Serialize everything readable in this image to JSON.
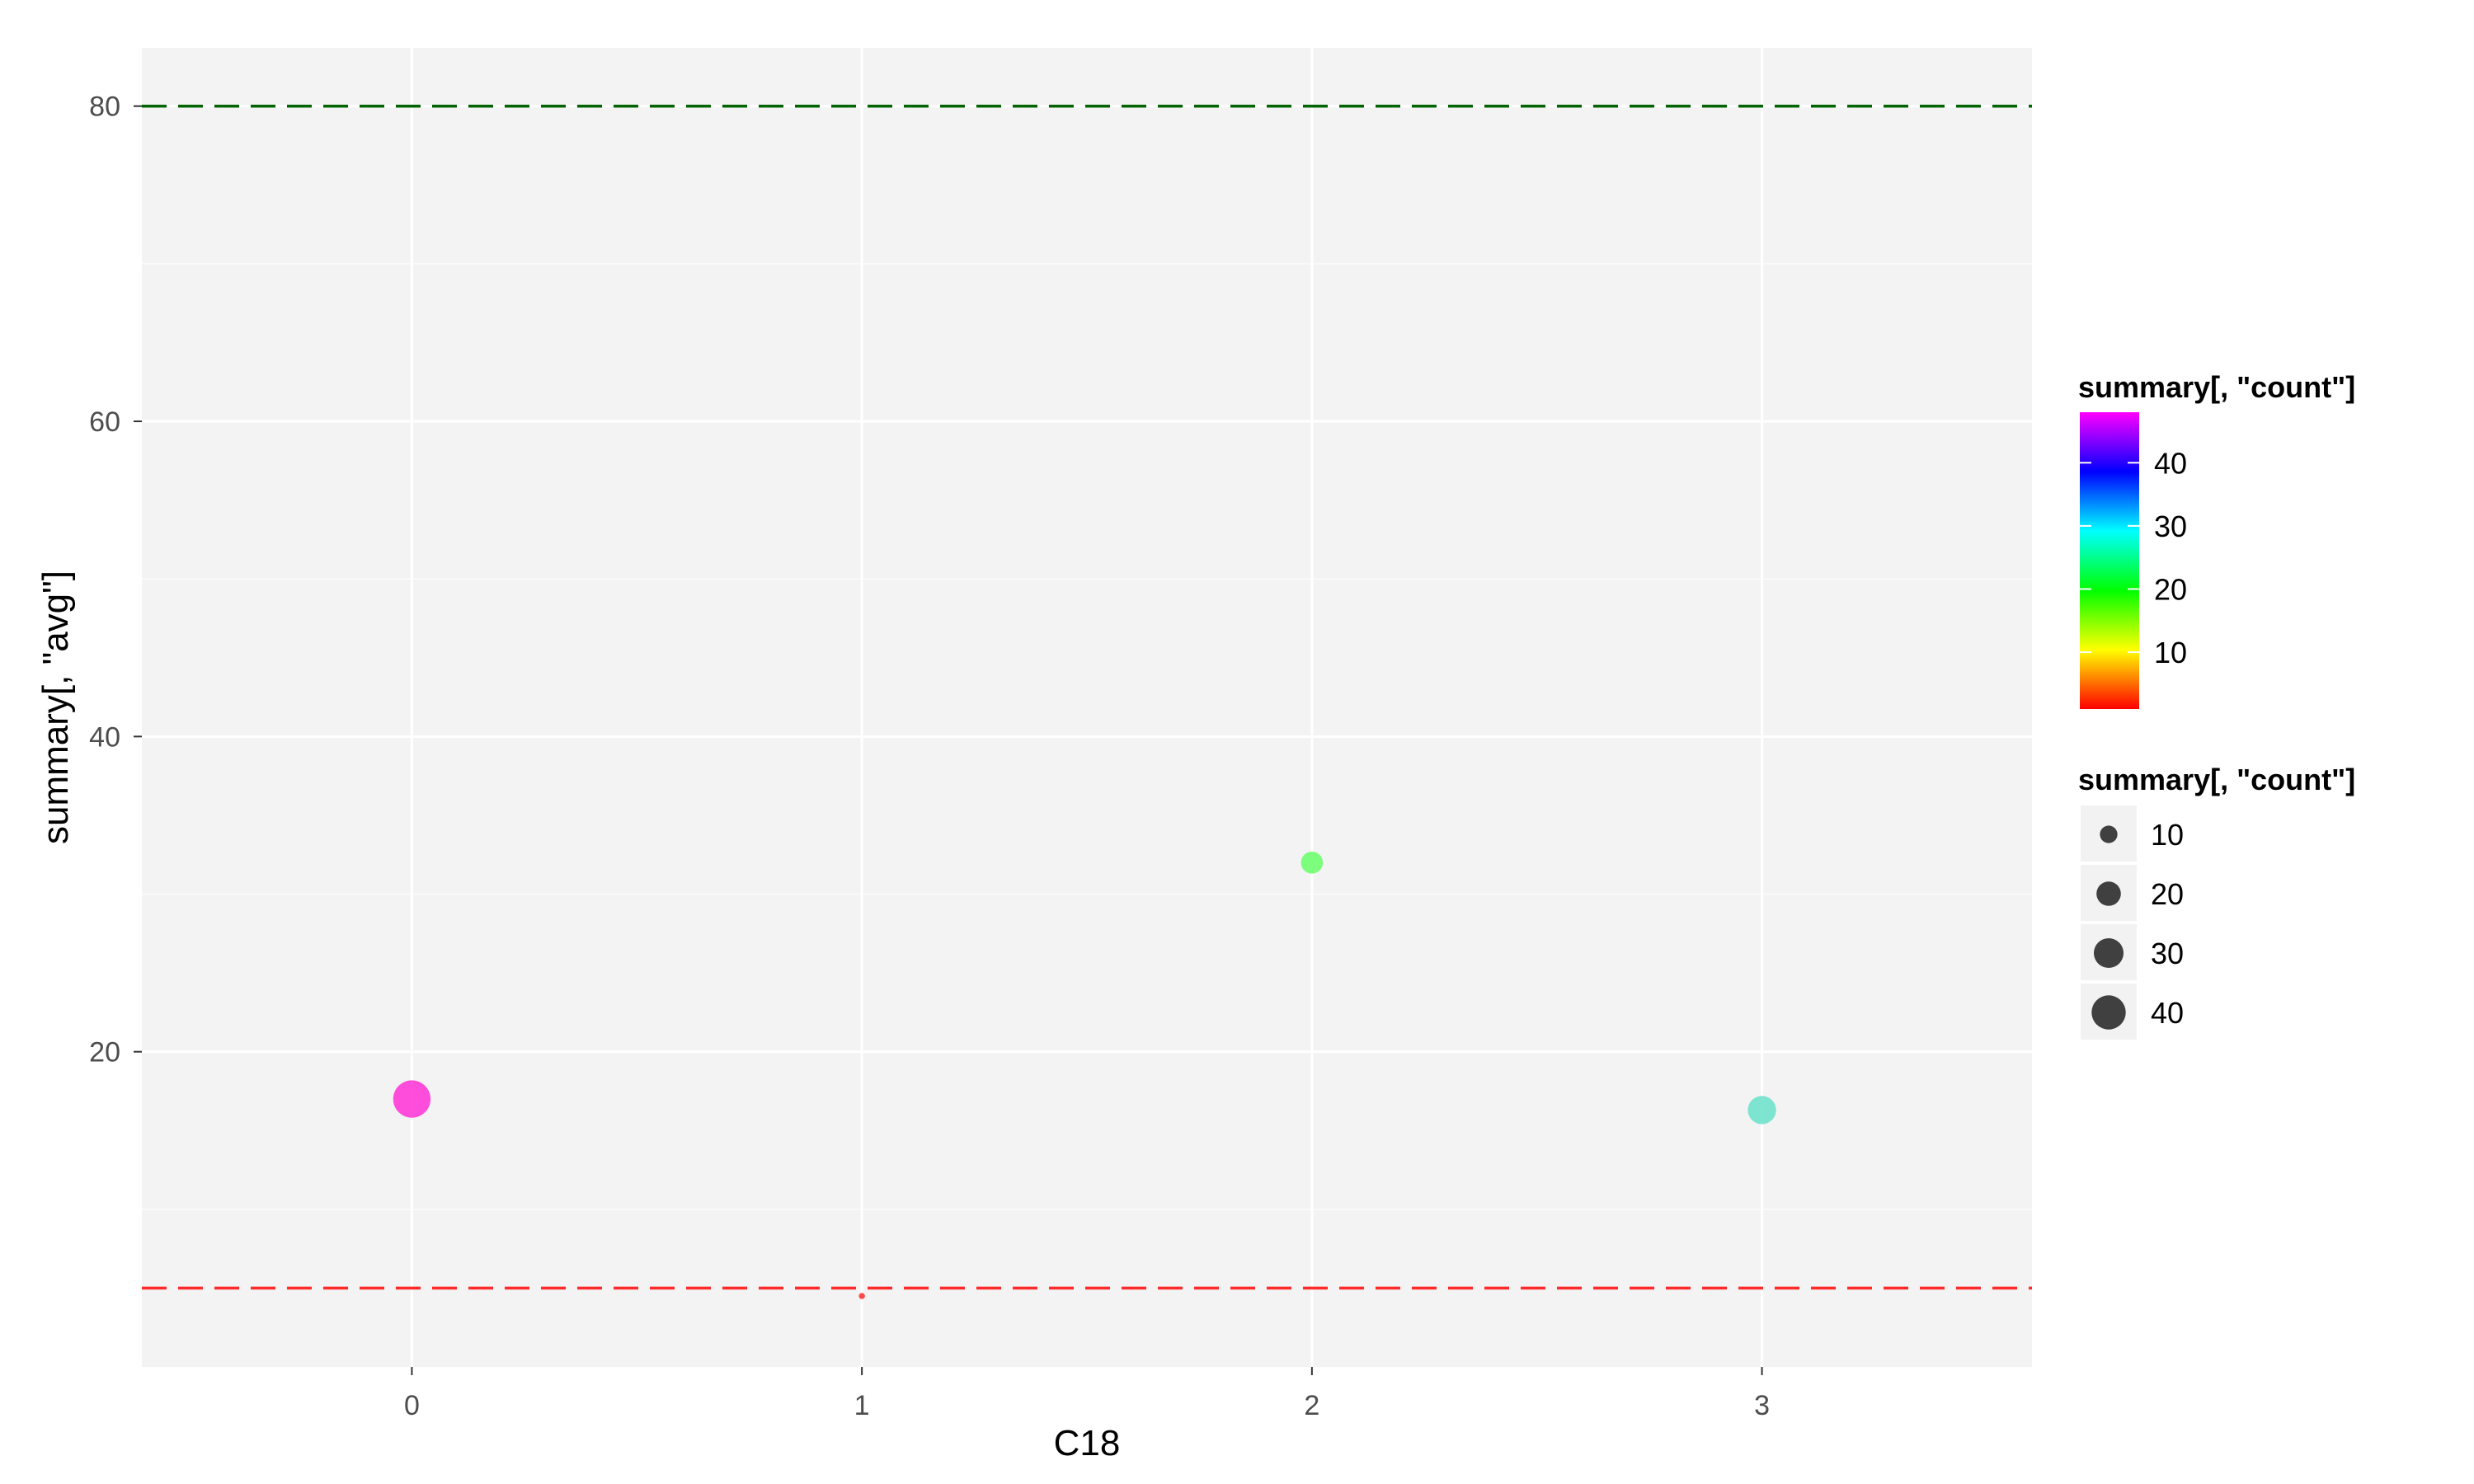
{
  "chart_data": {
    "type": "scatter",
    "xlabel": "C18",
    "ylabel": "summary[, \"avg\"]",
    "xlim": [
      -0.6,
      3.6
    ],
    "ylim": [
      0,
      83.7
    ],
    "x_ticks": [
      "0",
      "1",
      "2",
      "3"
    ],
    "y_ticks": [
      "20",
      "40",
      "60",
      "80"
    ],
    "grid": true,
    "points": [
      {
        "x": 0,
        "y": 17,
        "count": 48,
        "color": "#ff2fd6"
      },
      {
        "x": 1,
        "y": 4.5,
        "count": 1,
        "color": "#ff2a2a"
      },
      {
        "x": 2,
        "y": 32,
        "count": 16,
        "color": "#66ff66"
      },
      {
        "x": 3,
        "y": 16.3,
        "count": 27,
        "color": "#66e0c8"
      }
    ],
    "reference_lines": [
      {
        "y": 80,
        "color": "#006400",
        "style": "dashed"
      },
      {
        "y": 5,
        "color": "#ff2a2a",
        "style": "dashed"
      }
    ],
    "legend_color": {
      "title": "summary[, \"count\"]",
      "labels": [
        "40",
        "30",
        "20",
        "10"
      ],
      "values": [
        40,
        30,
        20,
        10
      ],
      "range": [
        1,
        48
      ],
      "gradient": [
        "#ff0000",
        "#ffff00",
        "#00ff00",
        "#00ffff",
        "#0000ff",
        "#ff00ff"
      ]
    },
    "legend_size": {
      "title": "summary[, \"count\"]",
      "labels": [
        "10",
        "20",
        "30",
        "40"
      ],
      "values": [
        10,
        20,
        30,
        40
      ],
      "key_color": "#404040"
    },
    "legend_placement": "right"
  }
}
